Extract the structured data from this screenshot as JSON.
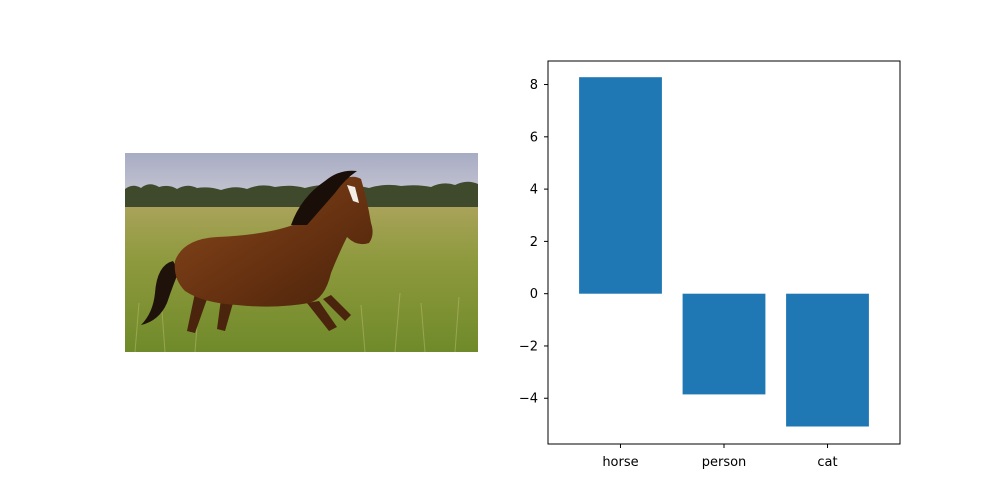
{
  "photo": {
    "subject": "horse"
  },
  "chart_data": {
    "type": "bar",
    "categories": [
      "horse",
      "person",
      "cat"
    ],
    "values": [
      8.28,
      -3.85,
      -5.08
    ],
    "title": "",
    "xlabel": "",
    "ylabel": "",
    "ylim": [
      -5.75,
      8.9
    ],
    "yticks": [
      -4,
      -2,
      0,
      2,
      4,
      6,
      8
    ],
    "ytick_labels": [
      "−4",
      "−2",
      "0",
      "2",
      "4",
      "6",
      "8"
    ],
    "grid": false,
    "colors": {
      "bar": "#1f77b4",
      "axis": "#000000"
    }
  }
}
